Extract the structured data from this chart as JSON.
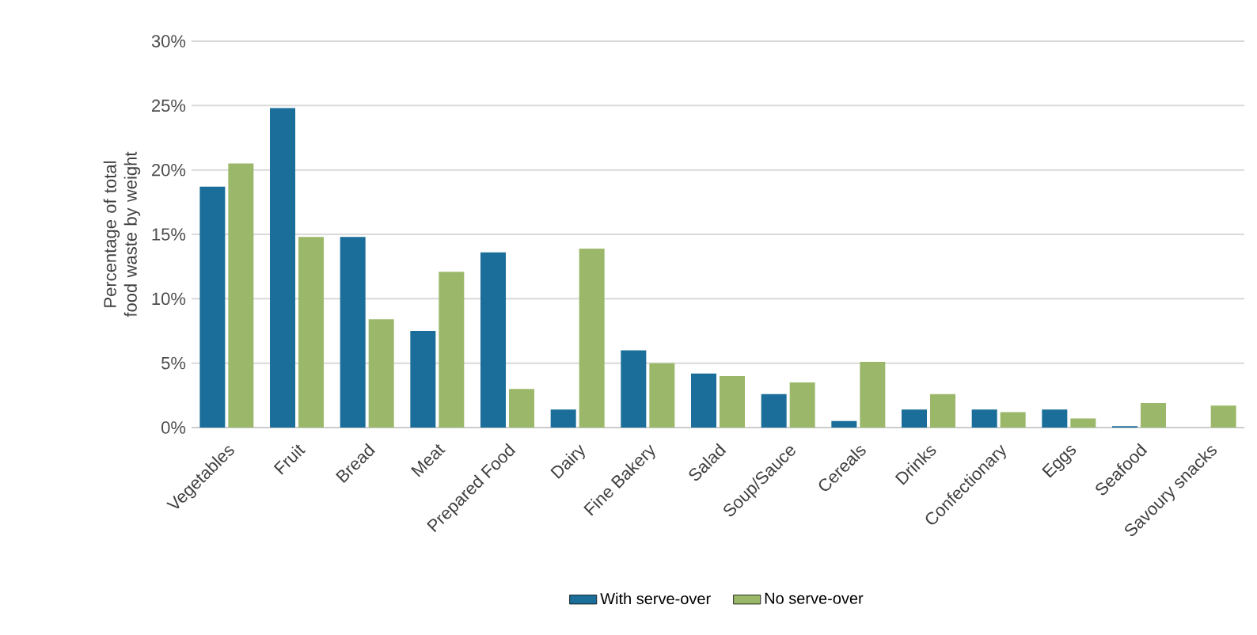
{
  "chart_data": {
    "type": "bar",
    "ylabel": "Percentage of total food waste by weight",
    "categories": [
      "Vegetables",
      "Fruit",
      "Bread",
      "Meat",
      "Prepared Food",
      "Dairy",
      "Fine Bakery",
      "Salad",
      "Soup/Sauce",
      "Cereals",
      "Drinks",
      "Confectionary",
      "Eggs",
      "Seafood",
      "Savoury snacks"
    ],
    "series": [
      {
        "name": "With serve-over",
        "color": "#1a6e99",
        "values": [
          18.7,
          24.8,
          14.8,
          7.5,
          13.6,
          1.4,
          6.0,
          4.2,
          2.6,
          0.5,
          1.4,
          1.4,
          1.4,
          0.1,
          null
        ]
      },
      {
        "name": "No serve-over",
        "color": "#9bb86a",
        "values": [
          20.5,
          14.8,
          8.4,
          12.1,
          3.0,
          13.9,
          5.0,
          4.0,
          3.5,
          5.1,
          2.6,
          1.2,
          0.7,
          1.9,
          1.7
        ]
      }
    ],
    "ylim": [
      0,
      30
    ],
    "yticks": [
      {
        "value": 0,
        "label": "0%"
      },
      {
        "value": 5,
        "label": "5%"
      },
      {
        "value": 10,
        "label": "10%"
      },
      {
        "value": 15,
        "label": "15%"
      },
      {
        "value": 20,
        "label": "20%"
      },
      {
        "value": 25,
        "label": "25%"
      },
      {
        "value": 30,
        "label": "30%"
      }
    ],
    "grid": "y",
    "legend": "bottom"
  }
}
